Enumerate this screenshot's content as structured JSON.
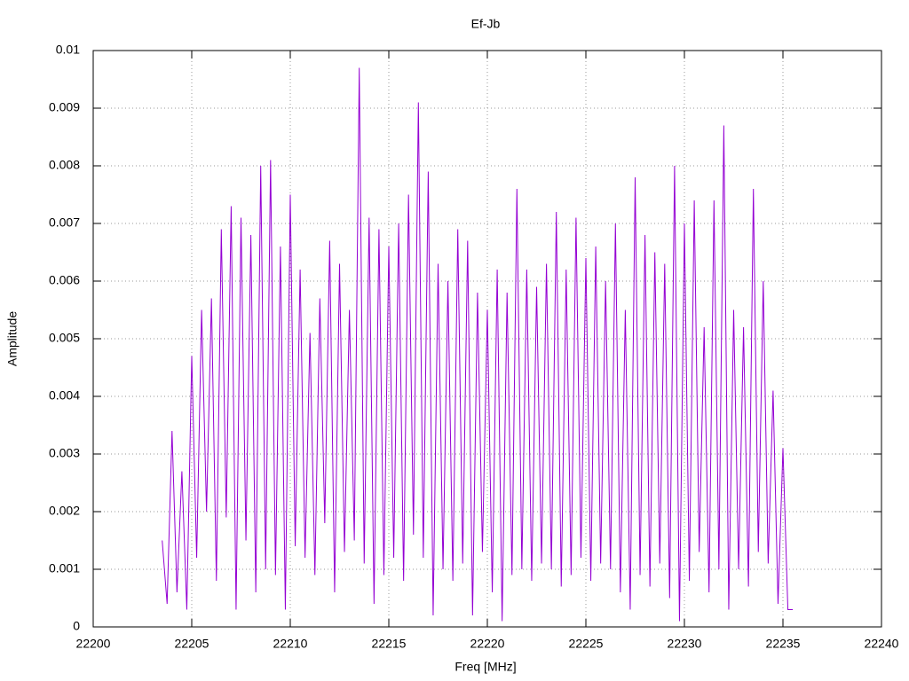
{
  "chart_data": {
    "type": "line",
    "title": "Ef-Jb",
    "x_label": "Freq [MHz]",
    "y_label": "Amplitude",
    "color": "#9400d3",
    "grid": true,
    "xlim": [
      22200,
      22240
    ],
    "xticks": [
      22200,
      22205,
      22210,
      22215,
      22220,
      22225,
      22230,
      22235,
      22240
    ],
    "ylim": [
      0,
      0.01
    ],
    "yticks": [
      0,
      0.001,
      0.002,
      0.003,
      0.004,
      0.005,
      0.006,
      0.007,
      0.008,
      0.009,
      0.01
    ],
    "x": [
      22203.5,
      22203.75,
      22204,
      22204.25,
      22204.5,
      22204.75,
      22205,
      22205.25,
      22205.5,
      22205.75,
      22206,
      22206.25,
      22206.5,
      22206.75,
      22207,
      22207.25,
      22207.5,
      22207.75,
      22208,
      22208.25,
      22208.5,
      22208.75,
      22209,
      22209.25,
      22209.5,
      22209.75,
      22210,
      22210.25,
      22210.5,
      22210.75,
      22211,
      22211.25,
      22211.5,
      22211.75,
      22212,
      22212.25,
      22212.5,
      22212.75,
      22213,
      22213.25,
      22213.5,
      22213.75,
      22214,
      22214.25,
      22214.5,
      22214.75,
      22215,
      22215.25,
      22215.5,
      22215.75,
      22216,
      22216.25,
      22216.5,
      22216.75,
      22217,
      22217.25,
      22217.5,
      22217.75,
      22218,
      22218.25,
      22218.5,
      22218.75,
      22219,
      22219.25,
      22219.5,
      22219.75,
      22220,
      22220.25,
      22220.5,
      22220.75,
      22221,
      22221.25,
      22221.5,
      22221.75,
      22222,
      22222.25,
      22222.5,
      22222.75,
      22223,
      22223.25,
      22223.5,
      22223.75,
      22224,
      22224.25,
      22224.5,
      22224.75,
      22225,
      22225.25,
      22225.5,
      22225.75,
      22226,
      22226.25,
      22226.5,
      22226.75,
      22227,
      22227.25,
      22227.5,
      22227.75,
      22228,
      22228.25,
      22228.5,
      22228.75,
      22229,
      22229.25,
      22229.5,
      22229.75,
      22230,
      22230.25,
      22230.5,
      22230.75,
      22231,
      22231.25,
      22231.5,
      22231.75,
      22232,
      22232.25,
      22232.5,
      22232.75,
      22233,
      22233.25,
      22233.5,
      22233.75,
      22234,
      22234.25,
      22234.5,
      22234.75,
      22235,
      22235.25,
      22235.5
    ],
    "values": [
      0.0015,
      0.0004,
      0.0034,
      0.0006,
      0.0027,
      0.0003,
      0.0047,
      0.0012,
      0.0055,
      0.002,
      0.0057,
      0.0008,
      0.0069,
      0.0019,
      0.0073,
      0.0003,
      0.0071,
      0.0015,
      0.0068,
      0.0006,
      0.008,
      0.001,
      0.0081,
      0.0009,
      0.0066,
      0.0003,
      0.0075,
      0.0014,
      0.0062,
      0.0012,
      0.0051,
      0.0009,
      0.0057,
      0.0018,
      0.0067,
      0.0006,
      0.0063,
      0.0013,
      0.0055,
      0.0015,
      0.0097,
      0.0011,
      0.0071,
      0.0004,
      0.0069,
      0.0009,
      0.0066,
      0.0012,
      0.007,
      0.0008,
      0.0075,
      0.0016,
      0.0091,
      0.0012,
      0.0079,
      0.0002,
      0.0063,
      0.001,
      0.006,
      0.0008,
      0.0069,
      0.0011,
      0.0067,
      0.0002,
      0.0058,
      0.0013,
      0.0055,
      0.0006,
      0.0062,
      0.0001,
      0.0058,
      0.0009,
      0.0076,
      0.001,
      0.0062,
      0.0008,
      0.0059,
      0.0011,
      0.0063,
      0.001,
      0.0072,
      0.0007,
      0.0062,
      0.0009,
      0.0071,
      0.0012,
      0.0064,
      0.0008,
      0.0066,
      0.0011,
      0.006,
      0.001,
      0.007,
      0.0006,
      0.0055,
      0.0003,
      0.0078,
      0.0009,
      0.0068,
      0.0007,
      0.0065,
      0.0011,
      0.0063,
      0.0005,
      0.008,
      0.0001,
      0.007,
      0.0008,
      0.0074,
      0.0013,
      0.0052,
      0.0006,
      0.0074,
      0.001,
      0.0087,
      0.0003,
      0.0055,
      0.001,
      0.0052,
      0.0007,
      0.0076,
      0.0013,
      0.006,
      0.0011,
      0.0041,
      0.0004,
      0.0031,
      0.0003,
      0.0003
    ]
  }
}
